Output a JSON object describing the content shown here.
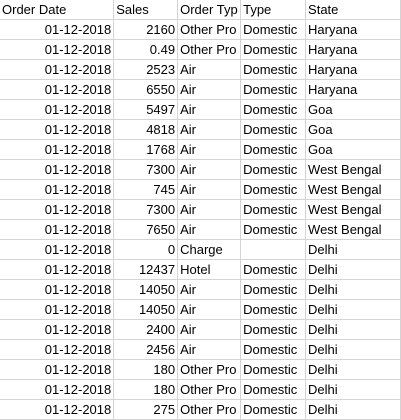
{
  "headers": [
    "Order Date",
    "Sales",
    "Order Typ",
    "Type",
    "State"
  ],
  "rows": [
    [
      "01-12-2018",
      "2160",
      "Other Pro",
      "Domestic",
      "Haryana"
    ],
    [
      "01-12-2018",
      "0.49",
      "Other Pro",
      "Domestic",
      "Haryana"
    ],
    [
      "01-12-2018",
      "2523",
      "Air",
      "Domestic",
      "Haryana"
    ],
    [
      "01-12-2018",
      "6550",
      "Air",
      "Domestic",
      "Haryana"
    ],
    [
      "01-12-2018",
      "5497",
      "Air",
      "Domestic",
      "Goa"
    ],
    [
      "01-12-2018",
      "4818",
      "Air",
      "Domestic",
      "Goa"
    ],
    [
      "01-12-2018",
      "1768",
      "Air",
      "Domestic",
      "Goa"
    ],
    [
      "01-12-2018",
      "7300",
      "Air",
      "Domestic",
      "West Bengal"
    ],
    [
      "01-12-2018",
      "745",
      "Air",
      "Domestic",
      "West Bengal"
    ],
    [
      "01-12-2018",
      "7300",
      "Air",
      "Domestic",
      "West Bengal"
    ],
    [
      "01-12-2018",
      "7650",
      "Air",
      "Domestic",
      "West Bengal"
    ],
    [
      "01-12-2018",
      "0",
      "Charge",
      "",
      "Delhi"
    ],
    [
      "01-12-2018",
      "12437",
      "Hotel",
      "Domestic",
      "Delhi"
    ],
    [
      "01-12-2018",
      "14050",
      "Air",
      "Domestic",
      "Delhi"
    ],
    [
      "01-12-2018",
      "14050",
      "Air",
      "Domestic",
      "Delhi"
    ],
    [
      "01-12-2018",
      "2400",
      "Air",
      "Domestic",
      "Delhi"
    ],
    [
      "01-12-2018",
      "2456",
      "Air",
      "Domestic",
      "Delhi"
    ],
    [
      "01-12-2018",
      "180",
      "Other Pro",
      "Domestic",
      "Delhi"
    ],
    [
      "01-12-2018",
      "180",
      "Other Pro",
      "Domestic",
      "Delhi"
    ],
    [
      "01-12-2018",
      "275",
      "Other Pro",
      "Domestic",
      "Delhi"
    ]
  ]
}
